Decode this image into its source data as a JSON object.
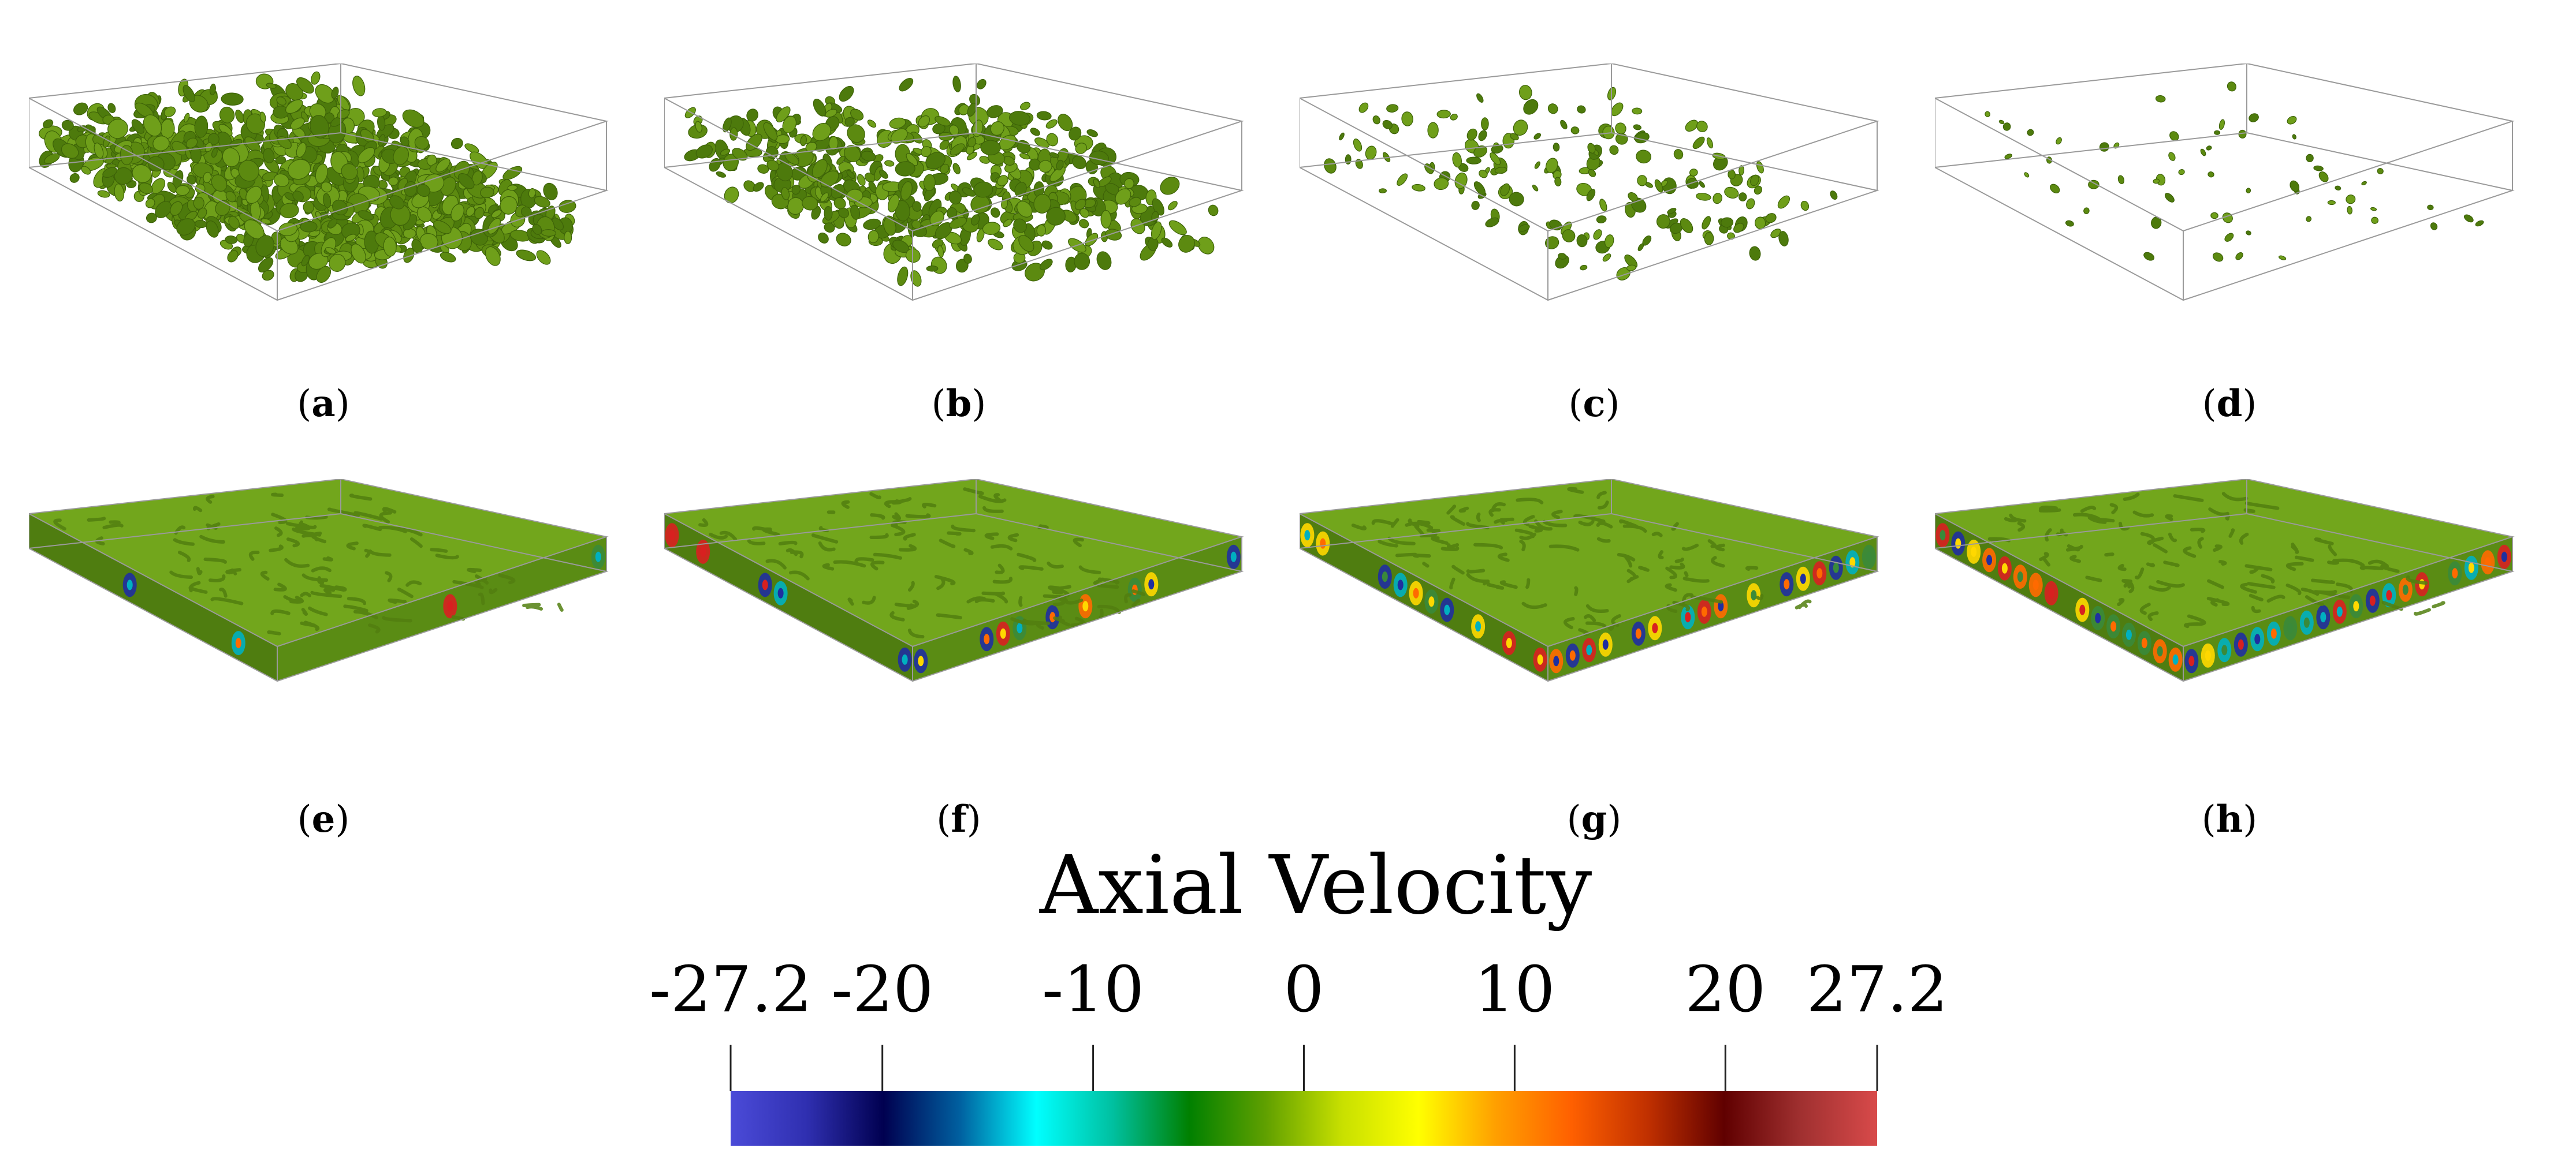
{
  "panels": [
    {
      "id": "a",
      "label": "a",
      "fill": "#6a9a16",
      "kind": "isosurface-dense"
    },
    {
      "id": "b",
      "label": "b",
      "fill": "#6a9a16",
      "kind": "isosurface-medium"
    },
    {
      "id": "c",
      "label": "c",
      "fill": "#5f8f12",
      "kind": "isosurface-sparse"
    },
    {
      "id": "d",
      "label": "d",
      "fill": "#5f8f12",
      "kind": "isosurface-very-sparse"
    },
    {
      "id": "e",
      "label": "e",
      "fill": "#6ea21a",
      "kind": "velocity-slab"
    },
    {
      "id": "f",
      "label": "f",
      "fill": "#6ea21a",
      "kind": "velocity-slab"
    },
    {
      "id": "g",
      "label": "g",
      "fill": "#6ea21a",
      "kind": "velocity-slab"
    },
    {
      "id": "h",
      "label": "h",
      "fill": "#6ea21a",
      "kind": "velocity-slab"
    }
  ],
  "colorbar": {
    "title": "Axial Velocity",
    "min": -27.2,
    "max": 27.2,
    "ticks": [
      {
        "value": -27.2,
        "label": "-27.2"
      },
      {
        "value": -20,
        "label": "-20"
      },
      {
        "value": -10,
        "label": "-10"
      },
      {
        "value": 0,
        "label": "0"
      },
      {
        "value": 10,
        "label": "10"
      },
      {
        "value": 20,
        "label": "20"
      },
      {
        "value": 27.2,
        "label": "27.2"
      }
    ],
    "colors": [
      "#4b4bd8",
      "#2f2fb0",
      "#000050",
      "#0060a0",
      "#00ffff",
      "#00c0a0",
      "#008000",
      "#60a000",
      "#c8e000",
      "#ffff00",
      "#ffa000",
      "#ff6000",
      "#c03000",
      "#600000",
      "#a03030",
      "#d84a4a"
    ]
  }
}
